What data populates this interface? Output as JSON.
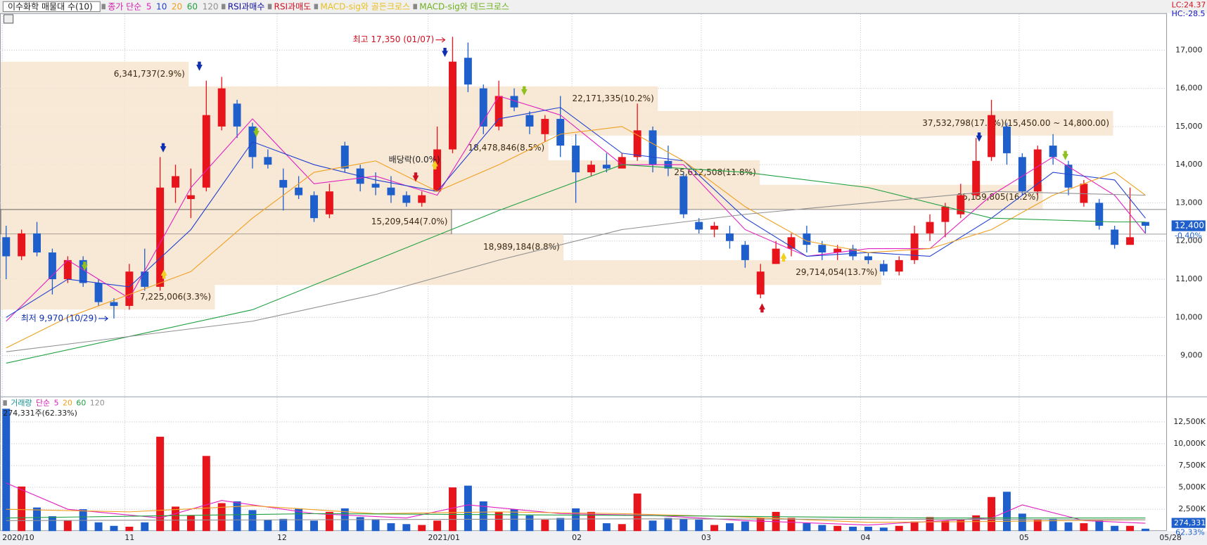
{
  "header": {
    "title": "이수화학 매물대 수(10)",
    "ma_label": "종가 단순",
    "signals": [
      {
        "label": "RSI과매수",
        "color": "#1010a0"
      },
      {
        "label": "RSI과매도",
        "color": "#d01020"
      },
      {
        "label": "MACD-sig와 골든크로스",
        "color": "#e8c020"
      },
      {
        "label": "MACD-sig와 데드크로스",
        "color": "#70b020"
      }
    ],
    "lc": "LC:24.37",
    "hc": "HC:-28.5"
  },
  "chart_data": {
    "type": "candlestick",
    "up_color": "#e8141c",
    "down_color": "#1f5fcc",
    "open": [
      12100,
      11600,
      12200,
      11700,
      11000,
      11500,
      10900,
      10400,
      10300,
      11200,
      10800,
      13400,
      13100,
      13400,
      15000,
      15600,
      15000,
      14200,
      13600,
      13400,
      13200,
      12700,
      14500,
      13900,
      13500,
      13400,
      13200,
      13000,
      13300,
      14400,
      16800,
      16000,
      15000,
      15800,
      15300,
      14800,
      15200,
      14500,
      13800,
      14000,
      13900,
      14200,
      14900,
      14100,
      13700,
      12500,
      12300,
      12200,
      11900,
      10600,
      11400,
      11800,
      12200,
      11900,
      11700,
      11800,
      11600,
      11400,
      11200,
      11500,
      12200,
      12500,
      12700,
      13200,
      14200,
      15000,
      14200,
      13300,
      14500,
      14000,
      13000,
      13000,
      12300,
      11900,
      12500
    ],
    "high": [
      12400,
      12300,
      12500,
      11800,
      11600,
      11600,
      11000,
      10500,
      11400,
      11800,
      14200,
      14000,
      13900,
      16200,
      16300,
      15700,
      15100,
      14400,
      13900,
      13700,
      13300,
      13500,
      14600,
      14000,
      13800,
      13700,
      13300,
      13300,
      15000,
      17350,
      17200,
      16100,
      16200,
      16000,
      15400,
      15300,
      15800,
      14800,
      14100,
      14300,
      14300,
      15600,
      15000,
      14500,
      13800,
      12600,
      12500,
      12400,
      12000,
      11400,
      12000,
      12200,
      12400,
      12000,
      11900,
      11900,
      11700,
      11500,
      11600,
      12400,
      12700,
      13000,
      13500,
      14700,
      15700,
      15100,
      14300,
      14500,
      14800,
      14100,
      13600,
      13100,
      12400,
      13400,
      12500
    ],
    "low": [
      11000,
      11500,
      11600,
      10600,
      10900,
      10800,
      10300,
      9970,
      10200,
      10700,
      10700,
      13000,
      12600,
      13300,
      14900,
      14700,
      13900,
      13900,
      12800,
      13100,
      12500,
      12600,
      13800,
      13300,
      13200,
      13000,
      12900,
      12900,
      13300,
      14300,
      15900,
      14800,
      14900,
      15400,
      14800,
      14600,
      14200,
      13000,
      13700,
      13800,
      13900,
      14100,
      13800,
      13700,
      12600,
      12200,
      12100,
      11800,
      11300,
      10500,
      11400,
      11600,
      11700,
      11500,
      11500,
      11500,
      11400,
      11100,
      11100,
      11400,
      12000,
      12100,
      12600,
      13100,
      14100,
      14000,
      13200,
      13200,
      14000,
      13200,
      12900,
      12300,
      11800,
      11900,
      12200
    ],
    "close": [
      11600,
      12200,
      11700,
      11000,
      11500,
      10900,
      10400,
      10300,
      11200,
      10800,
      13400,
      13700,
      13200,
      15300,
      16000,
      15000,
      14200,
      14000,
      13400,
      13200,
      12600,
      13300,
      13900,
      13500,
      13400,
      13200,
      13000,
      13200,
      14400,
      16700,
      16100,
      15000,
      15800,
      15500,
      15000,
      15200,
      14500,
      13800,
      14000,
      13900,
      14200,
      14900,
      14000,
      13900,
      12700,
      12300,
      12400,
      12000,
      11500,
      11200,
      11800,
      12100,
      11900,
      11700,
      11800,
      11600,
      11500,
      11200,
      11500,
      12200,
      12500,
      12900,
      13200,
      14100,
      15300,
      14300,
      13300,
      14400,
      14200,
      13400,
      13500,
      12400,
      11900,
      12100,
      12400
    ],
    "xticks": [
      {
        "value": -0.25,
        "label": "2020/10"
      },
      {
        "value": 7.7,
        "label": "11"
      },
      {
        "value": 17.6,
        "label": "12"
      },
      {
        "value": 27.4,
        "label": "2021/01"
      },
      {
        "value": 36.75,
        "label": "02"
      },
      {
        "value": 45.15,
        "label": "03"
      },
      {
        "value": 55.5,
        "label": "04"
      },
      {
        "value": 65.8,
        "label": "05"
      },
      {
        "value": 76.35,
        "label": "05/28"
      }
    ],
    "ylim": [
      7990,
      17950
    ],
    "yticks": [
      {
        "value": 9000,
        "label": "9,000"
      },
      {
        "value": 10000,
        "label": "10,000"
      },
      {
        "value": 11000,
        "label": "11,000"
      },
      {
        "value": 12000,
        "label": "12,000"
      },
      {
        "value": 13000,
        "label": "13,000"
      },
      {
        "value": 14000,
        "label": "14,000"
      },
      {
        "value": 15000,
        "label": "15,000"
      },
      {
        "value": 16000,
        "label": "16,000"
      },
      {
        "value": 17000,
        "label": "17,000"
      }
    ],
    "ma_series": [
      {
        "name": "5",
        "color": "#e020c0",
        "x": [
          0,
          4,
          8,
          12,
          16,
          20,
          24,
          28,
          32,
          36,
          40,
          44,
          48,
          52,
          56,
          60,
          64,
          68,
          72,
          74
        ],
        "values": [
          9900,
          11500,
          10500,
          13400,
          15200,
          13500,
          13700,
          13200,
          15800,
          15300,
          14000,
          14000,
          12300,
          11600,
          11800,
          11800,
          13200,
          14200,
          13200,
          12200
        ]
      },
      {
        "name": "10",
        "color": "#2040d0",
        "x": [
          0,
          4,
          8,
          12,
          16,
          20,
          24,
          28,
          32,
          36,
          40,
          44,
          48,
          52,
          56,
          60,
          64,
          68,
          72,
          74
        ],
        "values": [
          10000,
          11000,
          10800,
          12300,
          14600,
          14000,
          13600,
          13300,
          15200,
          15500,
          14300,
          14100,
          12600,
          11600,
          11700,
          11600,
          12600,
          13800,
          13600,
          12600
        ]
      },
      {
        "name": "20",
        "color": "#f0a020",
        "x": [
          0,
          4,
          8,
          12,
          16,
          20,
          24,
          28,
          32,
          36,
          40,
          44,
          48,
          52,
          56,
          60,
          64,
          68,
          72,
          74
        ],
        "values": [
          9200,
          10000,
          10600,
          11200,
          12600,
          13800,
          14100,
          13300,
          14000,
          14800,
          15000,
          14100,
          12900,
          12000,
          11700,
          11800,
          12300,
          13200,
          13800,
          13200
        ]
      },
      {
        "name": "60",
        "color": "#20a040",
        "x": [
          0,
          8,
          16,
          24,
          32,
          40,
          48,
          56,
          64,
          72,
          74
        ],
        "values": [
          8800,
          9500,
          10200,
          11500,
          12800,
          14000,
          13800,
          13400,
          12600,
          12500,
          12500
        ]
      },
      {
        "name": "120",
        "color": "#909090",
        "x": [
          0,
          16,
          24,
          32,
          40,
          48,
          56,
          64,
          74
        ],
        "values": [
          9100,
          9900,
          10600,
          11500,
          12300,
          12700,
          13000,
          13300,
          13200
        ]
      }
    ],
    "profile": [
      {
        "label": "6,341,737(2.9%)",
        "range": [
          16052,
          16698
        ],
        "volume": 6341737
      },
      {
        "label": "22,171,335(10.2%)",
        "range": [
          15407,
          16052
        ],
        "volume": 22171335
      },
      {
        "label": "37,532,798(17.3%)(15,450.00 ~ 14,800.00)",
        "range": [
          14762,
          15407
        ],
        "volume": 37532798
      },
      {
        "label": "18,478,846(8.5%)",
        "range": [
          14117,
          14762
        ],
        "volume": 18478846
      },
      {
        "label": "25,612,508(11.8%)",
        "range": [
          13472,
          14117
        ],
        "volume": 25612508
      },
      {
        "label": "35,159,805(16.2%)",
        "range": [
          12827,
          13472
        ],
        "volume": 35159805
      },
      {
        "label": "15,209,544(7.0%)",
        "range": [
          12181,
          12827
        ],
        "volume": 15209544
      },
      {
        "label": "18,989,184(8.8%)",
        "range": [
          11496,
          12181
        ],
        "volume": 18989184
      },
      {
        "label": "29,714,054(13.7%)",
        "range": [
          10851,
          11496
        ],
        "volume": 29714054
      },
      {
        "label": "7,225,006(3.3%)",
        "range": [
          10206,
          10851
        ],
        "volume": 7225006
      }
    ],
    "high_note": "최고 17,350 (01/07)",
    "low_note": "최저 9,970 (10/29)",
    "dividend_note": "배당락(0.0%)",
    "last_price": {
      "value": 12400,
      "label": "12,400",
      "change": "-0.40%"
    },
    "volume": {
      "title": "거래량",
      "ma_label": "단순",
      "note": "274,331주(62.33%)",
      "values": [
        14000,
        5100,
        2700,
        1700,
        1200,
        2500,
        1000,
        600,
        500,
        1000,
        10800,
        2800,
        1800,
        8600,
        3200,
        3400,
        2400,
        1300,
        1400,
        2600,
        1200,
        2200,
        2600,
        1600,
        1300,
        900,
        800,
        700,
        1200,
        5000,
        5200,
        3400,
        2200,
        2500,
        1800,
        1300,
        1500,
        2600,
        2200,
        900,
        800,
        4300,
        1200,
        1500,
        1400,
        1300,
        700,
        900,
        1100,
        1500,
        2200,
        1500,
        900,
        700,
        600,
        500,
        500,
        400,
        600,
        1100,
        1600,
        1200,
        1300,
        1800,
        3900,
        4500,
        2000,
        1300,
        1400,
        1000,
        900,
        1200,
        600,
        600,
        274.331
      ],
      "ylim": [
        0,
        15150
      ],
      "yticks": [
        {
          "value": 2500,
          "label": "2,500K"
        },
        {
          "value": 5000,
          "label": "5,000K"
        },
        {
          "value": 7500,
          "label": "7,500K"
        },
        {
          "value": 10000,
          "label": "10,000K"
        },
        {
          "value": 12500,
          "label": "12,500K"
        }
      ],
      "last": {
        "value": 274.331,
        "label": "274,331",
        "ratio": "62.33%"
      },
      "series": [
        {
          "name": "5",
          "color": "#e020c0",
          "x": [
            0,
            4,
            10,
            14,
            20,
            26,
            30,
            36,
            42,
            48,
            56,
            64,
            66,
            70,
            74
          ],
          "values": [
            5500,
            2500,
            1500,
            3500,
            2000,
            1500,
            3000,
            2000,
            1800,
            1200,
            700,
            1500,
            3000,
            1200,
            900
          ]
        },
        {
          "name": "20",
          "color": "#f0a020",
          "x": [
            0,
            8,
            16,
            24,
            32,
            40,
            48,
            56,
            64,
            74
          ],
          "values": [
            2500,
            2200,
            2900,
            2000,
            2200,
            2000,
            1600,
            1000,
            1100,
            1300
          ]
        },
        {
          "name": "60",
          "color": "#20a040",
          "x": [
            0,
            20,
            40,
            60,
            74
          ],
          "values": [
            1500,
            2000,
            1800,
            1500,
            1500
          ]
        },
        {
          "name": "120",
          "color": "#909090",
          "x": [
            0,
            40,
            74
          ],
          "values": [
            1200,
            1400,
            1300
          ]
        }
      ]
    }
  }
}
